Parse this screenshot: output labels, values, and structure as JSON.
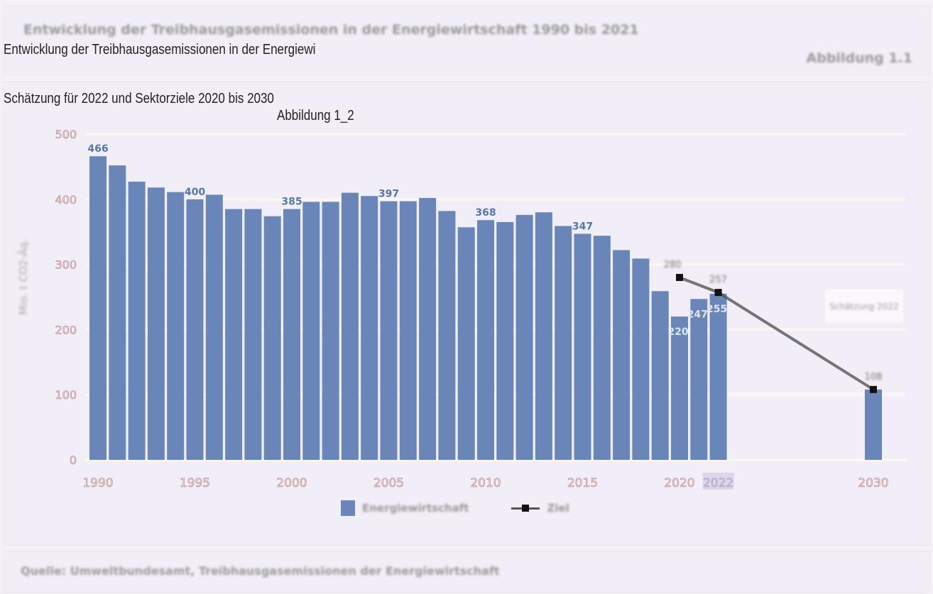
{
  "header": {
    "title": "Entwicklung der Treibhausgasemissionen in der Energiewirtschaft 1990 bis 2021",
    "figure_label": "Abbildung 1.1",
    "overlay_lines": [
      "Entwicklung der Treibhausgasemissionen in der Energiewi",
      "Schätzung für 2022 und Sektorziele 2020 bis 2030",
      "Abbildung 1_2"
    ]
  },
  "footer": {
    "source": "Quelle: Umweltbundesamt, Treibhausgasemissionen der Energiewirtschaft"
  },
  "chart_data": {
    "type": "bar",
    "title": "Entwicklung der Treibhausgasemissionen in der Energiewirtschaft 1990 bis 2021",
    "ylabel": "Mio. t CO2-Äq.",
    "ylim": [
      0,
      500
    ],
    "yticks": [
      0,
      100,
      200,
      300,
      400,
      500
    ],
    "xlim": [
      1990,
      2030
    ],
    "xticks": [
      "1990",
      "1995",
      "2000",
      "2005",
      "2010",
      "2015",
      "2020",
      "2022",
      "2030"
    ],
    "highlight_tick": "2022",
    "grid": true,
    "legend_position": "bottom",
    "colors": {
      "bar": "#6a86b8",
      "label": "#5577aa",
      "target": "#555555"
    },
    "series": [
      {
        "name": "Energiewirtschaft",
        "type": "bar",
        "x": [
          1990,
          1991,
          1992,
          1993,
          1994,
          1995,
          1996,
          1997,
          1998,
          1999,
          2000,
          2001,
          2002,
          2003,
          2004,
          2005,
          2006,
          2007,
          2008,
          2009,
          2010,
          2011,
          2012,
          2013,
          2014,
          2015,
          2016,
          2017,
          2018,
          2019,
          2020,
          2021,
          2022,
          2030
        ],
        "values": [
          466,
          452,
          427,
          418,
          411,
          400,
          407,
          385,
          385,
          374,
          385,
          396,
          396,
          410,
          405,
          397,
          397,
          402,
          382,
          357,
          368,
          365,
          376,
          380,
          359,
          347,
          344,
          322,
          309,
          259,
          220,
          247,
          255,
          108
        ],
        "labeled": [
          1990,
          1995,
          2000,
          2005,
          2010,
          2015,
          2020,
          2021,
          2022
        ]
      },
      {
        "name": "Ziel",
        "type": "line",
        "x": [
          2020,
          2022,
          2030
        ],
        "values": [
          280,
          257,
          108
        ]
      }
    ],
    "annotation": "Schätzung 2022"
  }
}
